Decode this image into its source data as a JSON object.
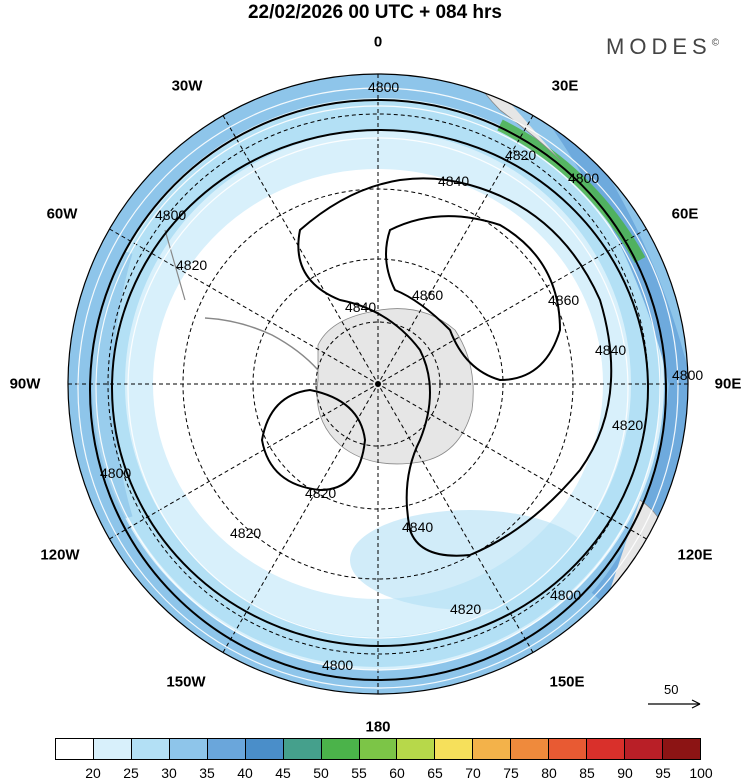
{
  "title": "22/02/2026  00 UTC  + 084 hrs",
  "brand": "MODES",
  "brand_mark": "©",
  "lon_labels": [
    "0",
    "30E",
    "60E",
    "90E",
    "120E",
    "150E",
    "180",
    "150W",
    "120W",
    "90W",
    "60W",
    "30W"
  ],
  "contour_labels": [
    "4800",
    "4820",
    "4840",
    "4860"
  ],
  "reference_vector": "50",
  "colorbar": {
    "ticks": [
      "20",
      "25",
      "30",
      "35",
      "40",
      "45",
      "50",
      "55",
      "60",
      "65",
      "70",
      "75",
      "80",
      "85",
      "90",
      "95",
      "100"
    ],
    "colors": [
      "#ffffff",
      "#d8f0fb",
      "#b3e0f5",
      "#8ec5ea",
      "#6aa6db",
      "#4a8ec9",
      "#45a08c",
      "#4bb34a",
      "#7cc547",
      "#b7d84a",
      "#f6e05b",
      "#f3b24a",
      "#ef8a3c",
      "#e85a33",
      "#d9302b",
      "#b91f27",
      "#8c1414"
    ]
  },
  "chart_data": {
    "type": "polar-stereographic-map",
    "projection": "south-polar-stereographic",
    "valid_time": "22/02/2026 00 UTC",
    "forecast_hour": 84,
    "shaded_field": "wind speed",
    "contour_field": "geopotential height",
    "contour_levels": [
      4800,
      4820,
      4840,
      4860
    ],
    "colorbar_range": [
      20,
      100
    ],
    "colorbar_step": 5,
    "reference_vector": 50,
    "longitudes": [
      "0",
      "30E",
      "60E",
      "90E",
      "120E",
      "150E",
      "180",
      "150W",
      "120W",
      "90W",
      "60W",
      "30W"
    ]
  }
}
